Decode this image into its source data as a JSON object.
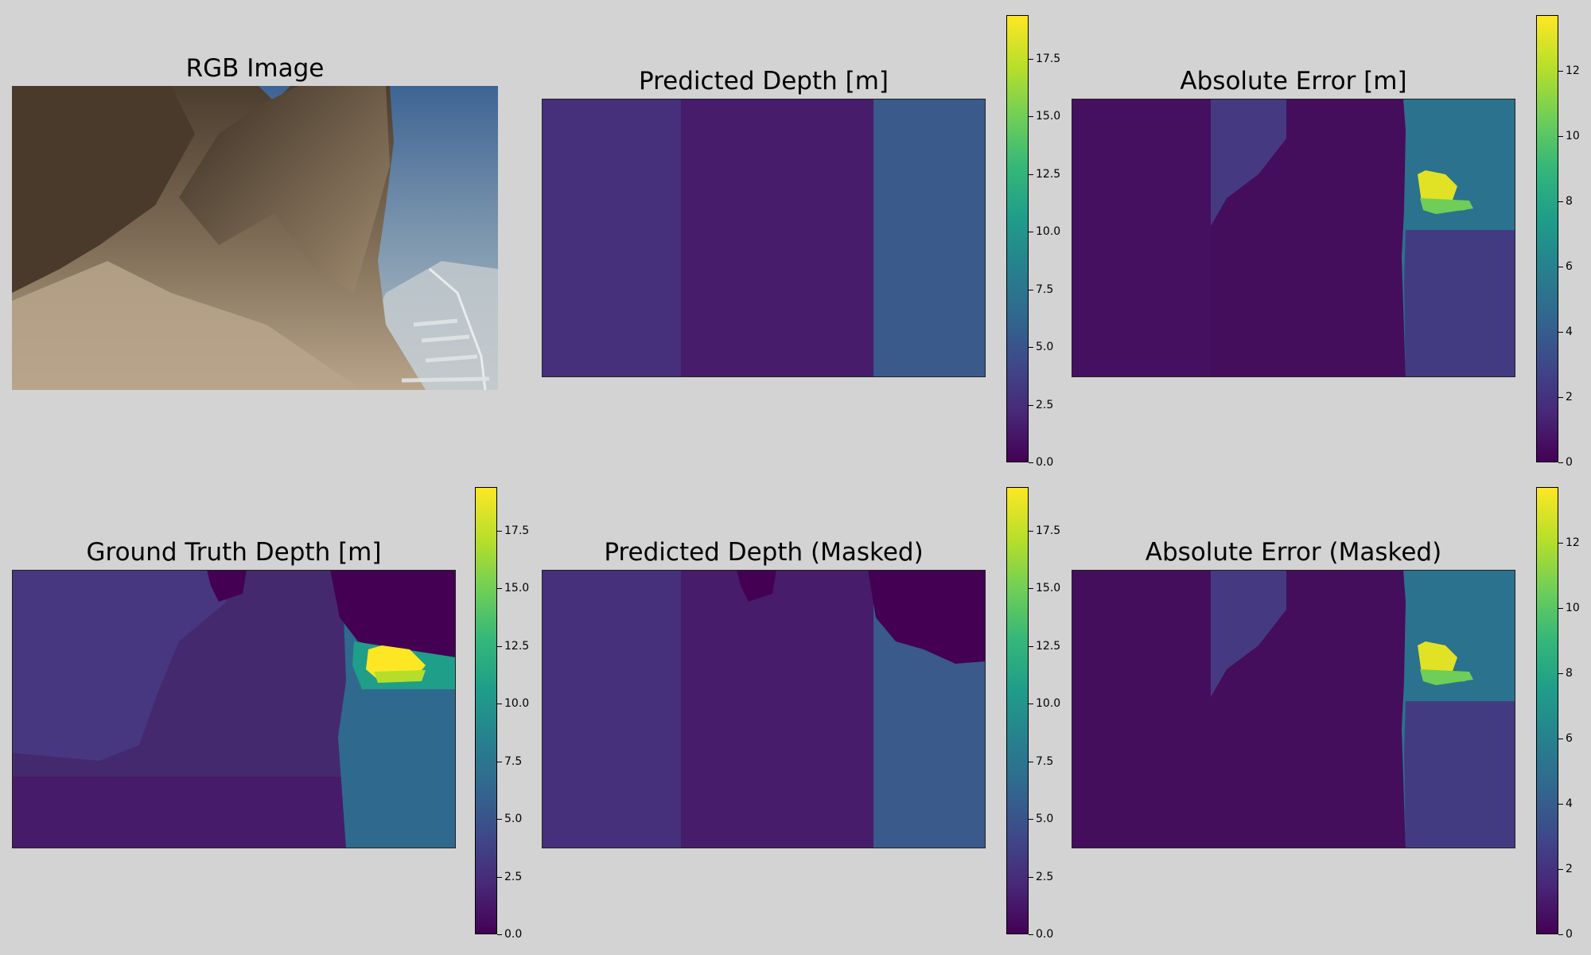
{
  "panels": {
    "rgb": {
      "title": "RGB Image"
    },
    "pred": {
      "title": "Predicted Depth [m]"
    },
    "err": {
      "title": "Absolute Error [m]"
    },
    "gt": {
      "title": "Ground Truth Depth [m]"
    },
    "pred_masked": {
      "title": "Predicted Depth (Masked)"
    },
    "err_masked": {
      "title": "Absolute Error (Masked)"
    }
  },
  "colorbars": {
    "depth_ticks": [
      "0.0",
      "2.5",
      "5.0",
      "7.5",
      "10.0",
      "12.5",
      "15.0",
      "17.5"
    ],
    "error_ticks": [
      "0",
      "2",
      "4",
      "6",
      "8",
      "10",
      "12"
    ]
  },
  "colormap": "viridis",
  "colors": {
    "background": "#d3d3d3",
    "viridis_low": "#440154",
    "viridis_high": "#fde725"
  }
}
